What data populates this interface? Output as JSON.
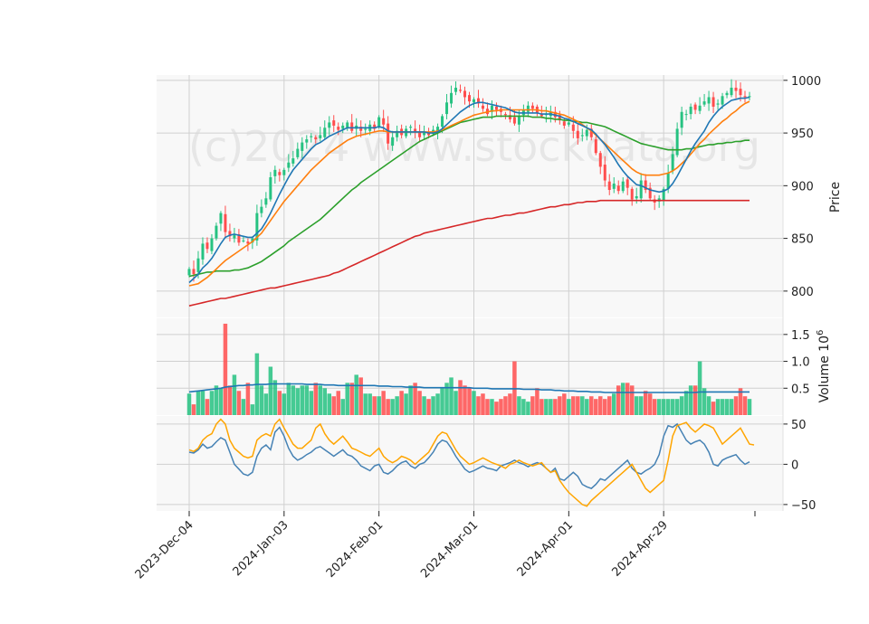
{
  "chart_data": {
    "type": "candlestick",
    "watermark": "(c)2024 www.stockdata.org",
    "colors": {
      "up": "#26c281",
      "down": "#ff4d4d",
      "ma_fast": "#1f77b4",
      "ma_mid": "#ff7f0e",
      "ma_slow": "#2ca02c",
      "ma_long": "#d62728",
      "vol_ma": "#1f77b4",
      "osc_a": "#4682b4",
      "osc_b": "#ffa500",
      "grid": "#d0d0d0",
      "panel_bg": "#f8f8f8"
    },
    "x_tick_labels": [
      "2023-Dec-04",
      "2024-Jan-03",
      "2024-Feb-01",
      "2024-Mar-01",
      "2024-Apr-01",
      "2024-Apr-29"
    ],
    "x_tick_index": [
      0,
      21,
      42,
      63,
      84,
      105
    ],
    "price_panel": {
      "ylabel": "Price",
      "ylim": [
        775,
        1005
      ],
      "yticks": [
        800,
        850,
        900,
        950,
        1000
      ],
      "closes": [
        821,
        816,
        831,
        845,
        840,
        850,
        862,
        874,
        856,
        852,
        854,
        846,
        848,
        845,
        850,
        874,
        880,
        888,
        908,
        915,
        910,
        915,
        922,
        926,
        935,
        941,
        944,
        947,
        944,
        948,
        955,
        960,
        957,
        953,
        957,
        960,
        952,
        957,
        952,
        954,
        958,
        954,
        965,
        958,
        940,
        946,
        952,
        948,
        954,
        956,
        951,
        946,
        951,
        948,
        953,
        956,
        966,
        979,
        988,
        993,
        990,
        984,
        980,
        982,
        978,
        973,
        968,
        976,
        972,
        970,
        967,
        963,
        959,
        966,
        972,
        976,
        973,
        969,
        966,
        968,
        970,
        965,
        962,
        957,
        960,
        952,
        945,
        948,
        953,
        946,
        931,
        918,
        905,
        896,
        902,
        895,
        904,
        898,
        887,
        890,
        905,
        896,
        888,
        884,
        888,
        897,
        912,
        930,
        954,
        970,
        968,
        975,
        972,
        976,
        980,
        984,
        975,
        978,
        985,
        988,
        993,
        990,
        986,
        984,
        985
      ],
      "ma_fast": [
        808,
        812,
        816,
        822,
        826,
        831,
        838,
        845,
        851,
        853,
        854,
        853,
        852,
        851,
        851,
        855,
        859,
        866,
        874,
        883,
        892,
        900,
        908,
        915,
        920,
        925,
        930,
        935,
        939,
        941,
        944,
        947,
        949,
        951,
        953,
        955,
        955,
        955,
        955,
        955,
        955,
        955,
        956,
        955,
        952,
        951,
        951,
        951,
        951,
        951,
        951,
        951,
        951,
        950,
        950,
        951,
        954,
        958,
        962,
        966,
        970,
        973,
        976,
        978,
        979,
        979,
        978,
        977,
        976,
        975,
        974,
        972,
        970,
        969,
        969,
        969,
        969,
        969,
        968,
        968,
        968,
        967,
        966,
        964,
        963,
        961,
        959,
        957,
        955,
        953,
        949,
        944,
        939,
        933,
        927,
        920,
        914,
        909,
        905,
        901,
        900,
        898,
        896,
        895,
        894,
        895,
        897,
        902,
        909,
        917,
        925,
        933,
        940,
        946,
        952,
        960,
        966,
        971,
        975,
        978,
        981,
        982,
        983,
        983,
        984
      ],
      "ma_mid": [
        805,
        806,
        807,
        810,
        813,
        817,
        821,
        825,
        829,
        832,
        835,
        838,
        841,
        844,
        847,
        851,
        855,
        861,
        867,
        873,
        879,
        885,
        890,
        895,
        900,
        905,
        910,
        915,
        919,
        923,
        927,
        931,
        934,
        937,
        940,
        943,
        945,
        947,
        948,
        949,
        950,
        951,
        952,
        952,
        951,
        951,
        951,
        951,
        951,
        951,
        951,
        951,
        951,
        951,
        951,
        952,
        953,
        955,
        957,
        959,
        961,
        963,
        965,
        967,
        968,
        969,
        970,
        971,
        971,
        972,
        972,
        972,
        972,
        972,
        972,
        972,
        972,
        972,
        971,
        971,
        970,
        969,
        968,
        967,
        965,
        963,
        961,
        958,
        955,
        952,
        948,
        944,
        940,
        936,
        932,
        928,
        924,
        920,
        916,
        913,
        911,
        910,
        910,
        910,
        910,
        911,
        912,
        914,
        917,
        921,
        925,
        930,
        935,
        940,
        944,
        949,
        953,
        957,
        961,
        964,
        968,
        971,
        975,
        978,
        980
      ],
      "ma_slow": [
        814,
        815,
        816,
        817,
        818,
        818,
        819,
        819,
        819,
        819,
        820,
        820,
        821,
        822,
        824,
        826,
        828,
        831,
        834,
        837,
        840,
        843,
        847,
        850,
        853,
        856,
        859,
        862,
        865,
        868,
        872,
        876,
        880,
        884,
        888,
        892,
        896,
        899,
        903,
        906,
        909,
        912,
        915,
        918,
        921,
        924,
        927,
        930,
        933,
        936,
        939,
        942,
        944,
        946,
        948,
        950,
        952,
        954,
        956,
        958,
        960,
        961,
        962,
        963,
        964,
        965,
        965,
        965,
        966,
        966,
        966,
        966,
        966,
        966,
        966,
        966,
        965,
        965,
        965,
        964,
        964,
        963,
        963,
        962,
        962,
        961,
        961,
        960,
        960,
        959,
        958,
        957,
        956,
        954,
        952,
        950,
        948,
        946,
        944,
        942,
        940,
        939,
        938,
        937,
        936,
        935,
        934,
        934,
        934,
        934,
        935,
        935,
        936,
        937,
        938,
        939,
        939,
        940,
        940,
        941,
        941,
        942,
        942,
        943,
        943
      ],
      "ma_long": [
        786,
        787,
        788,
        789,
        790,
        791,
        792,
        793,
        793,
        794,
        795,
        796,
        797,
        798,
        799,
        800,
        801,
        802,
        803,
        803,
        804,
        805,
        806,
        807,
        808,
        809,
        810,
        811,
        812,
        813,
        814,
        815,
        817,
        818,
        820,
        822,
        824,
        826,
        828,
        830,
        832,
        834,
        836,
        838,
        840,
        842,
        844,
        846,
        848,
        850,
        852,
        853,
        855,
        856,
        857,
        858,
        859,
        860,
        861,
        862,
        863,
        864,
        865,
        866,
        867,
        868,
        869,
        869,
        870,
        871,
        872,
        872,
        873,
        874,
        874,
        875,
        876,
        877,
        878,
        879,
        880,
        880,
        881,
        882,
        882,
        883,
        884,
        884,
        885,
        885,
        885,
        886,
        886,
        886,
        886,
        886,
        886,
        886,
        886,
        886,
        886,
        886,
        886,
        886,
        886,
        886,
        886,
        886,
        886,
        886,
        886,
        886,
        886,
        886,
        886,
        886,
        886,
        886,
        886,
        886,
        886,
        886,
        886,
        886,
        886
      ]
    },
    "volume_panel": {
      "ylabel": "Volume  10^6",
      "ylim": [
        0,
        1.8
      ],
      "yticks": [
        0.5,
        1.0,
        1.5
      ],
      "ytick_labels": [
        "0.5",
        "1.0",
        "1.5"
      ],
      "volumes": [
        0.4,
        0.2,
        0.45,
        0.45,
        0.3,
        0.45,
        0.55,
        0.5,
        1.7,
        0.55,
        0.75,
        0.45,
        0.3,
        0.6,
        0.2,
        1.15,
        0.55,
        0.4,
        0.9,
        0.65,
        0.45,
        0.4,
        0.6,
        0.55,
        0.5,
        0.55,
        0.55,
        0.45,
        0.6,
        0.55,
        0.5,
        0.4,
        0.35,
        0.45,
        0.3,
        0.6,
        0.6,
        0.75,
        0.7,
        0.4,
        0.4,
        0.35,
        0.35,
        0.45,
        0.3,
        0.3,
        0.35,
        0.45,
        0.4,
        0.55,
        0.6,
        0.45,
        0.35,
        0.3,
        0.35,
        0.4,
        0.5,
        0.6,
        0.7,
        0.45,
        0.65,
        0.55,
        0.5,
        0.45,
        0.35,
        0.4,
        0.3,
        0.3,
        0.25,
        0.3,
        0.35,
        0.4,
        1.0,
        0.35,
        0.3,
        0.25,
        0.35,
        0.5,
        0.3,
        0.3,
        0.3,
        0.3,
        0.35,
        0.4,
        0.3,
        0.35,
        0.35,
        0.35,
        0.3,
        0.35,
        0.3,
        0.35,
        0.3,
        0.35,
        0.4,
        0.55,
        0.6,
        0.6,
        0.55,
        0.35,
        0.35,
        0.45,
        0.4,
        0.3,
        0.3,
        0.3,
        0.3,
        0.3,
        0.3,
        0.35,
        0.45,
        0.55,
        0.55,
        1.0,
        0.5,
        0.35,
        0.25,
        0.3,
        0.3,
        0.3,
        0.3,
        0.35,
        0.5,
        0.35,
        0.3
      ],
      "vol_ma": [
        0.43,
        0.44,
        0.45,
        0.46,
        0.47,
        0.48,
        0.49,
        0.5,
        0.52,
        0.53,
        0.54,
        0.55,
        0.55,
        0.56,
        0.56,
        0.57,
        0.57,
        0.57,
        0.58,
        0.58,
        0.58,
        0.58,
        0.58,
        0.58,
        0.58,
        0.58,
        0.57,
        0.57,
        0.57,
        0.57,
        0.56,
        0.56,
        0.56,
        0.55,
        0.55,
        0.55,
        0.55,
        0.55,
        0.55,
        0.55,
        0.55,
        0.55,
        0.54,
        0.54,
        0.54,
        0.53,
        0.53,
        0.53,
        0.52,
        0.52,
        0.52,
        0.52,
        0.51,
        0.51,
        0.51,
        0.51,
        0.51,
        0.51,
        0.51,
        0.51,
        0.51,
        0.51,
        0.51,
        0.5,
        0.5,
        0.5,
        0.5,
        0.49,
        0.49,
        0.49,
        0.49,
        0.49,
        0.49,
        0.49,
        0.48,
        0.48,
        0.48,
        0.48,
        0.47,
        0.47,
        0.47,
        0.46,
        0.46,
        0.45,
        0.45,
        0.45,
        0.44,
        0.44,
        0.44,
        0.43,
        0.43,
        0.43,
        0.42,
        0.42,
        0.42,
        0.42,
        0.42,
        0.42,
        0.42,
        0.42,
        0.42,
        0.42,
        0.42,
        0.42,
        0.42,
        0.42,
        0.42,
        0.42,
        0.42,
        0.42,
        0.42,
        0.42,
        0.42,
        0.43,
        0.43,
        0.43,
        0.43,
        0.43,
        0.43,
        0.43,
        0.43,
        0.43,
        0.43,
        0.43,
        0.43
      ]
    },
    "osc_panel": {
      "ylim": [
        -58,
        60
      ],
      "yticks": [
        -50,
        0,
        50
      ],
      "ytick_labels": [
        "−50",
        "0",
        "50"
      ],
      "series_a": [
        15,
        14,
        18,
        25,
        20,
        22,
        28,
        33,
        30,
        15,
        0,
        -6,
        -12,
        -14,
        -10,
        10,
        20,
        24,
        18,
        40,
        46,
        35,
        20,
        10,
        5,
        8,
        12,
        15,
        20,
        22,
        18,
        14,
        10,
        14,
        18,
        12,
        10,
        5,
        -2,
        -5,
        -8,
        -2,
        0,
        -10,
        -12,
        -8,
        -2,
        2,
        4,
        -2,
        -5,
        0,
        2,
        8,
        15,
        25,
        30,
        28,
        20,
        10,
        2,
        -6,
        -10,
        -8,
        -5,
        -2,
        -5,
        -6,
        -8,
        -2,
        0,
        2,
        5,
        2,
        0,
        -3,
        0,
        2,
        0,
        -5,
        -10,
        -5,
        -18,
        -20,
        -15,
        -10,
        -15,
        -25,
        -28,
        -30,
        -25,
        -18,
        -20,
        -15,
        -10,
        -5,
        0,
        5,
        -5,
        -10,
        -12,
        -8,
        -5,
        0,
        12,
        35,
        48,
        46,
        50,
        40,
        30,
        25,
        28,
        30,
        25,
        15,
        0,
        -2,
        5,
        8,
        10,
        12,
        5,
        0,
        3
      ],
      "series_b": [
        18,
        16,
        20,
        30,
        35,
        38,
        50,
        56,
        50,
        30,
        20,
        15,
        10,
        8,
        10,
        30,
        35,
        38,
        35,
        50,
        56,
        45,
        35,
        25,
        20,
        20,
        25,
        30,
        45,
        50,
        38,
        30,
        25,
        30,
        35,
        28,
        20,
        18,
        15,
        12,
        10,
        15,
        20,
        10,
        5,
        2,
        5,
        10,
        8,
        5,
        0,
        5,
        10,
        15,
        25,
        35,
        40,
        38,
        28,
        18,
        10,
        5,
        0,
        2,
        5,
        8,
        5,
        2,
        0,
        -2,
        -5,
        0,
        2,
        5,
        2,
        0,
        -2,
        0,
        2,
        -5,
        -10,
        -8,
        -20,
        -28,
        -35,
        -40,
        -45,
        -50,
        -52,
        -45,
        -40,
        -35,
        -30,
        -25,
        -20,
        -15,
        -10,
        -5,
        0,
        -10,
        -20,
        -30,
        -35,
        -30,
        -25,
        -20,
        5,
        35,
        48,
        50,
        52,
        45,
        40,
        45,
        50,
        48,
        45,
        35,
        25,
        30,
        35,
        40,
        45,
        35,
        25,
        24
      ]
    }
  }
}
